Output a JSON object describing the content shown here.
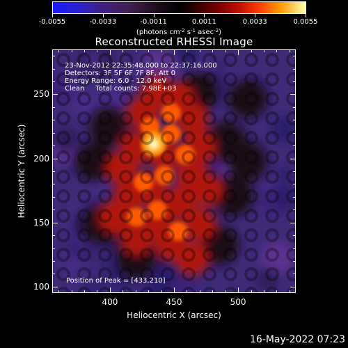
{
  "colorbar": {
    "ticks": [
      "-0.0055",
      "-0.0033",
      "-0.0011",
      "0.0011",
      "0.0033",
      "0.0055"
    ],
    "units_prefix": "(photons cm",
    "units_exp1": "-2",
    "units_mid1": " s",
    "units_exp2": "-1",
    "units_mid2": " asec",
    "units_exp3": "-2",
    "units_suffix": ")"
  },
  "title": "Reconstructed RHESSI Image",
  "info": {
    "time_range": "23-Nov-2012 22:35:48.000 to 22:37:16.000",
    "detectors": "Detectors: 3F 5F 6F 7F 8F, Att 0",
    "energy": "Energy Range: 6.0 - 12.0 keV",
    "clean": "Clean     Total counts: 7.98E+03",
    "peak": "Position of Peak = [433,210]"
  },
  "axes": {
    "xlabel": "Heliocentric X (arcsec)",
    "ylabel": "Heliocentric Y (arcsec)",
    "xticks": [
      "400",
      "450",
      "500"
    ],
    "yticks": [
      "100",
      "150",
      "200",
      "250"
    ]
  },
  "timestamp": "16-May-2022 07:23",
  "chart_data": {
    "type": "heatmap",
    "title": "Reconstructed RHESSI Image",
    "xlabel": "Heliocentric X (arcsec)",
    "ylabel": "Heliocentric Y (arcsec)",
    "xlim": [
      355,
      545
    ],
    "ylim": [
      95,
      285
    ],
    "colorbar_range": [
      -0.0055,
      0.0055
    ],
    "peak_position": [
      433,
      210
    ]
  }
}
